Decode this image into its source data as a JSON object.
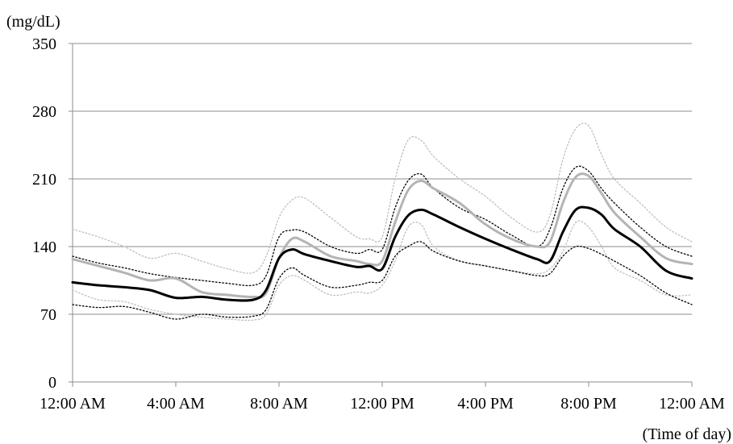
{
  "chart_data": {
    "type": "line",
    "title": "",
    "ylabel": "(mg/dL)",
    "xlabel": "(Time of day)",
    "ylim": [
      0,
      350
    ],
    "xlim": [
      0,
      24
    ],
    "yticks": [
      0,
      70,
      140,
      210,
      280,
      350
    ],
    "ytick_labels": [
      "0",
      "70",
      "140",
      "210",
      "280",
      "350"
    ],
    "xticks": [
      0,
      4,
      8,
      12,
      16,
      20,
      24
    ],
    "xtick_labels": [
      "12:00 AM",
      "4:00 AM",
      "8:00 AM",
      "12:00 PM",
      "4:00 PM",
      "8:00 PM",
      "12:00 AM"
    ],
    "grid": "horizontal",
    "legend": "none",
    "x": [
      0,
      1,
      2,
      3,
      4,
      5,
      6,
      7,
      7.5,
      8,
      8.5,
      9,
      10,
      11,
      11.5,
      12,
      12.5,
      13,
      13.5,
      14,
      15,
      16,
      17,
      18,
      18.5,
      19,
      19.5,
      20,
      20.5,
      21,
      22,
      23,
      24
    ],
    "series": [
      {
        "key": "median",
        "color": "#000000",
        "width": 3,
        "dash": "solid",
        "values": [
          103,
          100,
          98,
          95,
          87,
          88,
          85,
          85,
          95,
          128,
          137,
          132,
          125,
          119,
          120,
          117,
          150,
          172,
          178,
          173,
          160,
          148,
          137,
          127,
          125,
          155,
          178,
          180,
          173,
          158,
          140,
          115,
          107
        ]
      },
      {
        "key": "mean",
        "color": "#b4b4b4",
        "width": 3,
        "dash": "solid",
        "values": [
          127,
          120,
          113,
          105,
          107,
          93,
          90,
          88,
          92,
          128,
          148,
          145,
          130,
          125,
          122,
          125,
          165,
          198,
          208,
          200,
          185,
          163,
          148,
          140,
          145,
          185,
          212,
          213,
          195,
          175,
          150,
          128,
          122
        ]
      },
      {
        "key": "iqr-upper",
        "color": "#000000",
        "width": 1.3,
        "dash": "dotted",
        "values": [
          130,
          123,
          118,
          112,
          108,
          105,
          102,
          100,
          110,
          150,
          157,
          155,
          140,
          133,
          137,
          137,
          180,
          208,
          215,
          200,
          180,
          168,
          152,
          140,
          158,
          200,
          222,
          218,
          200,
          185,
          160,
          140,
          130
        ]
      },
      {
        "key": "iqr-lower",
        "color": "#000000",
        "width": 1.3,
        "dash": "dotted",
        "values": [
          80,
          77,
          78,
          72,
          65,
          70,
          67,
          68,
          75,
          107,
          118,
          110,
          98,
          100,
          103,
          105,
          130,
          140,
          145,
          135,
          125,
          120,
          115,
          110,
          112,
          130,
          140,
          138,
          132,
          125,
          110,
          92,
          80
        ]
      },
      {
        "key": "p90-upper",
        "color": "#bebebe",
        "width": 1.3,
        "dash": "dotted",
        "values": [
          158,
          150,
          140,
          128,
          133,
          125,
          117,
          113,
          130,
          170,
          188,
          190,
          170,
          150,
          148,
          150,
          210,
          250,
          250,
          233,
          210,
          192,
          170,
          155,
          172,
          230,
          262,
          265,
          235,
          210,
          185,
          160,
          145
        ]
      },
      {
        "key": "p90-lower",
        "color": "#bebebe",
        "width": 1.3,
        "dash": "dotted",
        "values": [
          95,
          85,
          83,
          75,
          70,
          67,
          65,
          64,
          70,
          100,
          110,
          105,
          90,
          93,
          92,
          100,
          125,
          160,
          163,
          140,
          125,
          120,
          115,
          112,
          117,
          135,
          165,
          160,
          140,
          118,
          105,
          90,
          90
        ]
      }
    ]
  }
}
